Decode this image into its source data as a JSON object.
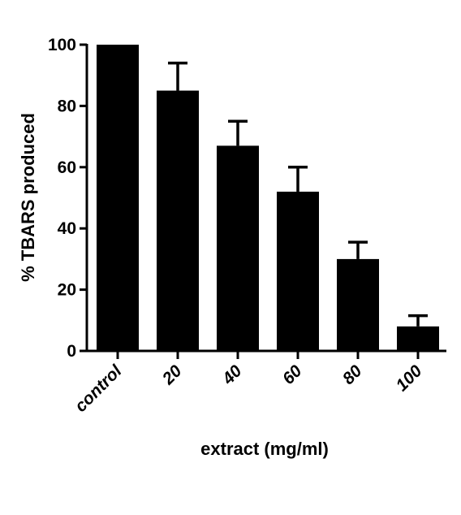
{
  "chart_data": {
    "type": "bar",
    "title": "",
    "xlabel": "extract (mg/ml)",
    "ylabel": "% TBARS produced",
    "categories": [
      "control",
      "20",
      "40",
      "60",
      "80",
      "100"
    ],
    "values": [
      100,
      85,
      67,
      52,
      30,
      8
    ],
    "error_plus": [
      0,
      9,
      8,
      8,
      5.5,
      3.5
    ],
    "ylim": [
      0,
      100
    ],
    "yticks": [
      "0",
      "20",
      "40",
      "60",
      "80",
      "100"
    ],
    "grid": false,
    "legend": "none",
    "bar_color": "#000000"
  }
}
